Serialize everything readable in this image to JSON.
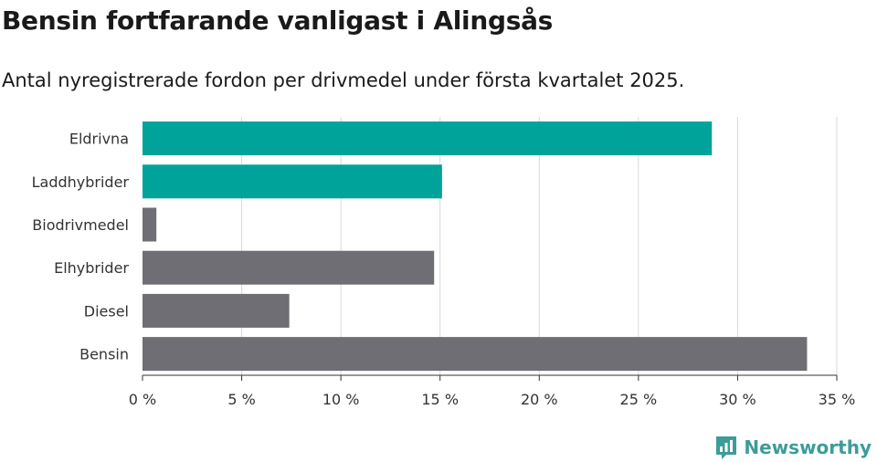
{
  "header": {
    "title": "Bensin fortfarande vanligast i Alingsås",
    "subtitle": "Antal nyregistrerade fordon per drivmedel under första kvartalet 2025."
  },
  "brand": {
    "name": "Newsworthy",
    "icon": "newsworthy-logo-icon",
    "color": "#3d9c98"
  },
  "chart_data": {
    "type": "bar",
    "orientation": "horizontal",
    "categories": [
      "Eldrivna",
      "Laddhybrider",
      "Biodrivmedel",
      "Elhybrider",
      "Diesel",
      "Bensin"
    ],
    "values": [
      28.7,
      15.1,
      0.7,
      14.7,
      7.4,
      33.5
    ],
    "colors": [
      "#00a39a",
      "#00a39a",
      "#6f6e74",
      "#6f6e74",
      "#6f6e74",
      "#6f6e74"
    ],
    "xlim": [
      0,
      35
    ],
    "xticks": [
      0,
      5,
      10,
      15,
      20,
      25,
      30,
      35
    ],
    "xtick_labels": [
      "0 %",
      "5 %",
      "10 %",
      "15 %",
      "20 %",
      "25 %",
      "30 %",
      "35 %"
    ],
    "grid": true,
    "legend": "none"
  }
}
